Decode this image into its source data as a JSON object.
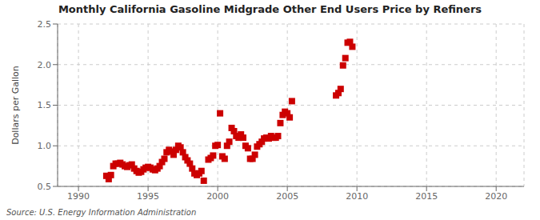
{
  "chart_data": {
    "type": "scatter",
    "title": "Monthly California Gasoline Midgrade Other End Users Price by Refiners",
    "ylabel": "Dollars per Gallon",
    "source": "Source: U.S. Energy Information Administration",
    "color": "#cc0000",
    "marker": "square",
    "grid": true,
    "xlim": [
      1988.5,
      2022
    ],
    "ylim": [
      0.5,
      2.5
    ],
    "xticks": [
      1990,
      1995,
      2000,
      2005,
      2010,
      2015,
      2020
    ],
    "yticks": [
      0.5,
      {
        "value": 1.0,
        "label": "1.0"
      },
      1.5,
      {
        "value": 2.0,
        "label": "2.0"
      },
      2.5
    ],
    "x": [
      1992.0,
      1992.17,
      1992.33,
      1992.5,
      1992.67,
      1992.83,
      1993.0,
      1993.17,
      1993.33,
      1993.5,
      1993.67,
      1993.83,
      1994.0,
      1994.17,
      1994.33,
      1994.5,
      1994.67,
      1994.83,
      1995.0,
      1995.17,
      1995.33,
      1995.5,
      1995.67,
      1995.83,
      1996.0,
      1996.17,
      1996.33,
      1996.5,
      1996.67,
      1996.83,
      1997.0,
      1997.17,
      1997.33,
      1997.5,
      1997.67,
      1997.83,
      1998.0,
      1998.17,
      1998.33,
      1998.5,
      1998.67,
      1998.83,
      1999.0,
      1999.33,
      1999.5,
      1999.67,
      1999.83,
      2000.0,
      2000.17,
      2000.33,
      2000.5,
      2000.67,
      2000.83,
      2001.0,
      2001.17,
      2001.33,
      2001.5,
      2001.67,
      2001.83,
      2002.0,
      2002.17,
      2002.33,
      2002.5,
      2002.67,
      2002.83,
      2003.0,
      2003.17,
      2003.33,
      2003.5,
      2003.67,
      2003.83,
      2004.0,
      2004.17,
      2004.33,
      2004.5,
      2004.67,
      2004.83,
      2005.0,
      2005.17,
      2005.33,
      2008.5,
      2008.67,
      2008.83,
      2009.0,
      2009.17,
      2009.33,
      2009.5,
      2009.67
    ],
    "values": [
      0.63,
      0.59,
      0.64,
      0.75,
      0.78,
      0.78,
      0.79,
      0.77,
      0.75,
      0.74,
      0.76,
      0.77,
      0.72,
      0.69,
      0.67,
      0.68,
      0.71,
      0.73,
      0.74,
      0.73,
      0.71,
      0.7,
      0.72,
      0.75,
      0.8,
      0.84,
      0.92,
      0.95,
      0.93,
      0.89,
      0.95,
      1.0,
      0.98,
      0.92,
      0.86,
      0.82,
      0.78,
      0.72,
      0.66,
      0.64,
      0.66,
      0.69,
      0.57,
      0.83,
      0.85,
      0.88,
      1.0,
      1.01,
      1.4,
      0.87,
      0.84,
      1.0,
      1.05,
      1.22,
      1.18,
      1.12,
      1.1,
      1.14,
      1.1,
      1.0,
      0.97,
      0.84,
      0.84,
      0.89,
      0.99,
      1.02,
      1.05,
      1.09,
      1.1,
      1.09,
      1.12,
      1.1,
      1.1,
      1.12,
      1.28,
      1.38,
      1.42,
      1.4,
      1.35,
      1.55,
      1.62,
      1.65,
      1.7,
      1.99,
      2.08,
      2.27,
      2.28,
      2.22
    ]
  }
}
